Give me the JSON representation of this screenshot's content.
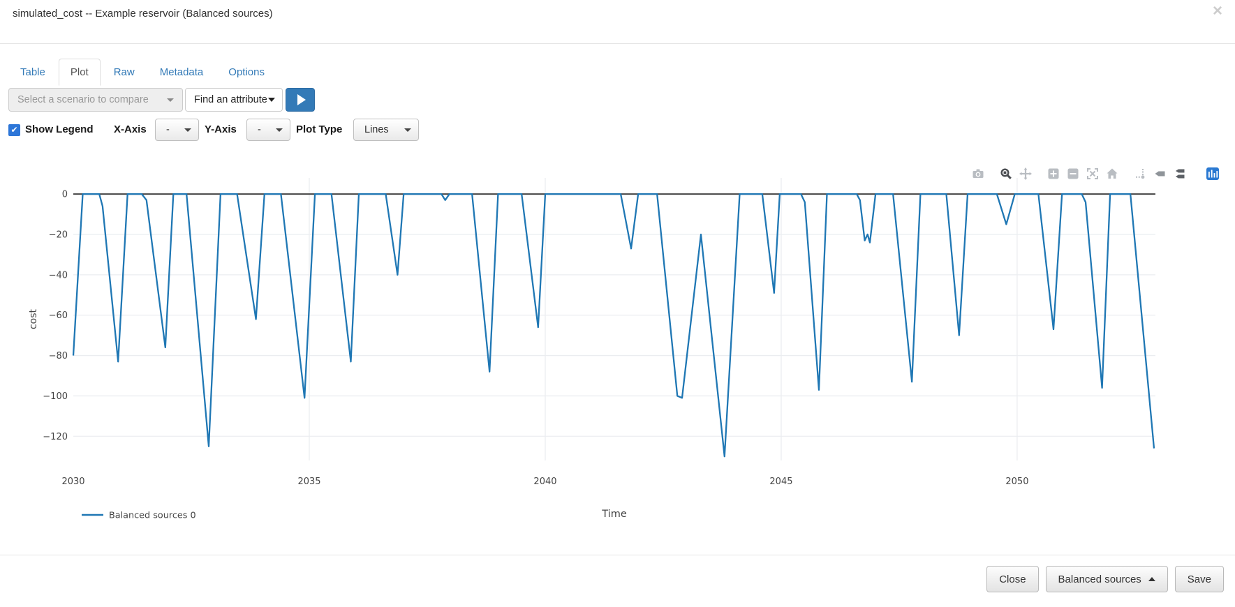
{
  "modal": {
    "title": "simulated_cost -- Example reservoir (Balanced sources)",
    "close_glyph": "×"
  },
  "tabs": [
    {
      "label": "Table",
      "active": false
    },
    {
      "label": "Plot",
      "active": true
    },
    {
      "label": "Raw",
      "active": false
    },
    {
      "label": "Metadata",
      "active": false
    },
    {
      "label": "Options",
      "active": false
    }
  ],
  "controls": {
    "scenario_select": {
      "placeholder": "Select a scenario to compare",
      "disabled": true
    },
    "attribute_select": {
      "value": "Find an attribute"
    },
    "play_button": {
      "icon": "play-icon"
    },
    "show_legend": {
      "label": "Show Legend",
      "checked": true,
      "check_glyph": "✔"
    },
    "x_axis": {
      "label": "X-Axis",
      "value": "-"
    },
    "y_axis": {
      "label": "Y-Axis",
      "value": "-"
    },
    "plot_type": {
      "label": "Plot Type",
      "value": "Lines"
    }
  },
  "modebar": {
    "groups": [
      [
        "camera-icon"
      ],
      [
        "zoom-icon",
        "pan-icon"
      ],
      [
        "zoom-in-icon",
        "zoom-out-icon",
        "autoscale-icon",
        "reset-axes-icon"
      ],
      [
        "spikelines-icon",
        "hover-closest-icon",
        "hover-compare-icon"
      ],
      [
        "plotly-logo-icon"
      ]
    ],
    "colors": {
      "default": "#b9bdc2",
      "zoom-icon": "#4a4d51",
      "hover-closest-icon": "#8f9499",
      "hover-compare-icon": "#5d6166",
      "plotly-logo-icon": "#2a79d2"
    }
  },
  "chart_data": {
    "type": "line",
    "xlabel": "Time",
    "ylabel": "cost",
    "x_ticks": [
      2030,
      2035,
      2040,
      2045,
      2050
    ],
    "y_ticks": [
      0,
      -20,
      -40,
      -60,
      -80,
      -100,
      -120
    ],
    "xlim": [
      2030,
      2052.93
    ],
    "ylim": [
      -132,
      8
    ],
    "grid": true,
    "zeroline_color": "#444444",
    "grid_color": "#ebedf0",
    "legend_position": "bottom-left",
    "legend": [
      {
        "label": "Balanced sources 0",
        "color": "#1f77b4"
      }
    ],
    "series": [
      {
        "name": "Balanced sources 0",
        "color": "#1f77b4",
        "points": [
          [
            2030.0,
            -80
          ],
          [
            2030.2,
            0
          ],
          [
            2030.55,
            0
          ],
          [
            2030.62,
            -6
          ],
          [
            2030.95,
            -83
          ],
          [
            2031.15,
            0
          ],
          [
            2031.45,
            0
          ],
          [
            2031.55,
            -3
          ],
          [
            2031.95,
            -76
          ],
          [
            2032.12,
            0
          ],
          [
            2032.4,
            0
          ],
          [
            2032.87,
            -125
          ],
          [
            2033.12,
            0
          ],
          [
            2033.47,
            0
          ],
          [
            2033.87,
            -62
          ],
          [
            2034.05,
            0
          ],
          [
            2034.4,
            0
          ],
          [
            2034.9,
            -101
          ],
          [
            2035.12,
            0
          ],
          [
            2035.47,
            0
          ],
          [
            2035.88,
            -83
          ],
          [
            2036.05,
            0
          ],
          [
            2036.62,
            0
          ],
          [
            2036.87,
            -40
          ],
          [
            2037.0,
            0
          ],
          [
            2037.8,
            0
          ],
          [
            2037.88,
            -3
          ],
          [
            2037.97,
            0
          ],
          [
            2038.45,
            0
          ],
          [
            2038.82,
            -88
          ],
          [
            2039.0,
            0
          ],
          [
            2039.5,
            0
          ],
          [
            2039.85,
            -66
          ],
          [
            2040.0,
            0
          ],
          [
            2041.6,
            0
          ],
          [
            2041.82,
            -27
          ],
          [
            2041.97,
            0
          ],
          [
            2042.37,
            0
          ],
          [
            2042.8,
            -100
          ],
          [
            2042.9,
            -101
          ],
          [
            2043.3,
            -20
          ],
          [
            2043.8,
            -130
          ],
          [
            2044.12,
            0
          ],
          [
            2044.6,
            0
          ],
          [
            2044.85,
            -49
          ],
          [
            2044.97,
            0
          ],
          [
            2045.42,
            0
          ],
          [
            2045.5,
            -4
          ],
          [
            2045.8,
            -97
          ],
          [
            2045.97,
            0
          ],
          [
            2046.6,
            0
          ],
          [
            2046.67,
            -3
          ],
          [
            2046.77,
            -23
          ],
          [
            2046.83,
            -20
          ],
          [
            2046.88,
            -24
          ],
          [
            2047.0,
            0
          ],
          [
            2047.37,
            0
          ],
          [
            2047.77,
            -93
          ],
          [
            2047.95,
            0
          ],
          [
            2048.5,
            0
          ],
          [
            2048.77,
            -70
          ],
          [
            2048.95,
            0
          ],
          [
            2049.57,
            0
          ],
          [
            2049.77,
            -15
          ],
          [
            2049.95,
            0
          ],
          [
            2050.45,
            0
          ],
          [
            2050.77,
            -67
          ],
          [
            2050.95,
            0
          ],
          [
            2051.37,
            0
          ],
          [
            2051.45,
            -4
          ],
          [
            2051.8,
            -96
          ],
          [
            2051.97,
            0
          ],
          [
            2052.4,
            0
          ],
          [
            2052.9,
            -126
          ]
        ]
      }
    ]
  },
  "footer": {
    "buttons": [
      {
        "label": "Close",
        "dropup": false
      },
      {
        "label": "Balanced sources",
        "dropup": true
      },
      {
        "label": "Save",
        "dropup": false
      }
    ]
  }
}
